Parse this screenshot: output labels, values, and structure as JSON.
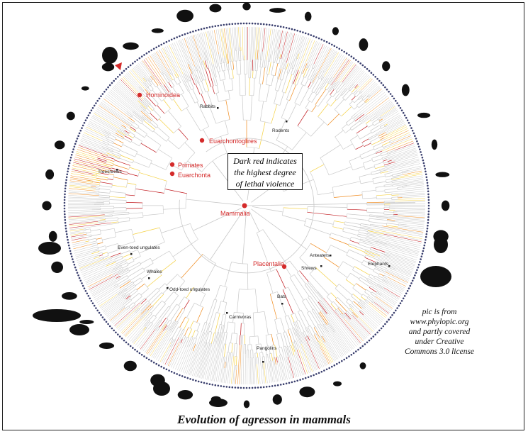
{
  "caption": "Evolution of agresson in mammals",
  "legend": {
    "line1": "Dark red indicates",
    "line2": "the highest degree",
    "line3": "of lethal violence"
  },
  "credit": {
    "line1": "pic is from",
    "line2": "www.phylopic.org",
    "line3": "and partly covered",
    "line4": "under Creative",
    "line5": "Commons 3.0 license"
  },
  "clades_highlighted": {
    "hominoidea": "Hominoidea",
    "euarchontoglires": "Euarchontoglires",
    "primates": "Primates",
    "euarchonta": "Euarchonta",
    "mammalia": "Mammalia",
    "placentalia": "Placentalia"
  },
  "clades": {
    "rabbits": "Rabbits",
    "rodents": "Rodents",
    "treeshrews": "Treeshrews",
    "even_toed": "Even-toed ungulates",
    "whales": "Whales",
    "odd_toed": "Odd-toed ungulates",
    "carnivoras": "Carnivoras",
    "bats": "Bats",
    "pangolins": "Pangolins",
    "anteaters": "Anteaters",
    "shrews": "Shrews",
    "elephants": "Elephants"
  },
  "colors": {
    "highlight": "#d42a2a",
    "branch_grey": "#c8c8c8",
    "violence_low": "#f5d142",
    "violence_mid": "#f08a1c",
    "violence_high": "#c0161b",
    "silhouette": "#111111"
  }
}
